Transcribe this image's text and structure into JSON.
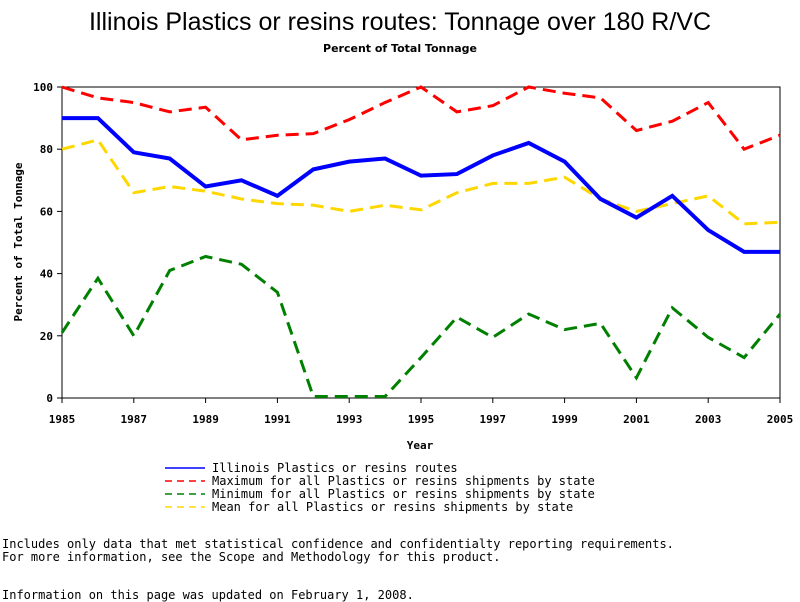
{
  "chart_data": {
    "type": "line",
    "title": "Illinois Plastics or resins routes: Tonnage over 180 R/VC",
    "subtitle": "Percent of Total Tonnage",
    "xlabel": "Year",
    "ylabel": "Percent of Total Tonnage",
    "xlim": [
      1985,
      2005
    ],
    "ylim": [
      0,
      100
    ],
    "x_ticks": [
      1985,
      1987,
      1989,
      1991,
      1993,
      1995,
      1997,
      1999,
      2001,
      2003,
      2005
    ],
    "y_ticks": [
      0,
      20,
      40,
      60,
      80,
      100
    ],
    "x": [
      1985,
      1986,
      1987,
      1988,
      1989,
      1990,
      1991,
      1992,
      1993,
      1994,
      1995,
      1996,
      1997,
      1998,
      1999,
      2000,
      2001,
      2002,
      2003,
      2004,
      2005
    ],
    "series": [
      {
        "name": "Illinois Plastics or resins routes",
        "color": "#0000ff",
        "dash": "solid",
        "values": [
          90,
          90,
          79,
          77,
          68,
          70,
          65,
          73.5,
          76,
          77,
          71.5,
          72,
          78,
          82,
          76,
          64,
          58,
          65,
          54,
          47,
          47
        ]
      },
      {
        "name": "Maximum for all Plastics or resins shipments by state",
        "color": "#ff0000",
        "dash": "dashed",
        "values": [
          100,
          96.5,
          95,
          92,
          93.5,
          83,
          84.5,
          85,
          89.5,
          95,
          100,
          92,
          94,
          100,
          98,
          96.5,
          86,
          89,
          95,
          80,
          84.5
        ]
      },
      {
        "name": "Minimum for all Plastics or resins shipments by state",
        "color": "#008000",
        "dash": "dashed",
        "values": [
          21,
          38.5,
          20,
          41,
          45.5,
          43,
          34,
          0.5,
          0.5,
          0.5,
          13,
          26,
          19.5,
          27,
          22,
          24,
          6.5,
          29,
          19.5,
          13,
          27
        ]
      },
      {
        "name": "Mean for all Plastics or resins shipments by state",
        "color": "#ffd700",
        "dash": "dashed",
        "values": [
          80,
          83,
          66,
          68,
          66.5,
          64,
          62.5,
          62,
          60,
          62,
          60.5,
          66,
          69,
          69,
          71,
          64,
          60,
          62.5,
          65,
          56,
          56.5
        ]
      }
    ]
  },
  "notes": {
    "line1": "Includes only data that met statistical confidence and confidentialty reporting requirements.",
    "line2": "For more information, see the Scope and Methodology for this product.",
    "updated": "Information on this page was updated on February 1, 2008."
  }
}
